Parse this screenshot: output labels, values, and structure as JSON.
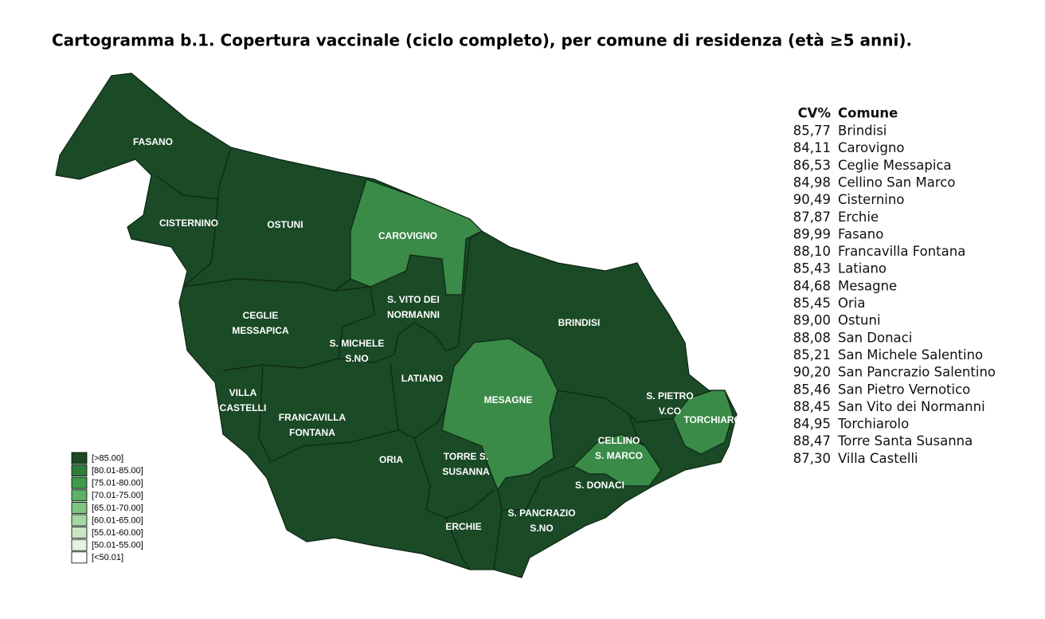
{
  "title": "Cartogramma b.1. Copertura vaccinale (ciclo completo), per comune di residenza (età ≥5 anni).",
  "map": {
    "labels": [
      [
        "FASANO"
      ],
      [
        "CISTERNINO"
      ],
      [
        "OSTUNI"
      ],
      [
        "CAROVIGNO"
      ],
      [
        "S. VITO DEI",
        "NORMANNI"
      ],
      [
        "CEGLIE",
        "MESSAPICA"
      ],
      [
        "S. MICHELE",
        "S.NO"
      ],
      [
        "BRINDISI"
      ],
      [
        "LATIANO"
      ],
      [
        "MESAGNE"
      ],
      [
        "VILLA",
        "CASTELLI"
      ],
      [
        "FRANCAVILLA",
        "FONTANA"
      ],
      [
        "S. PIETRO",
        "V.CO"
      ],
      [
        "TORCHIAROLO"
      ],
      [
        "CELLINO",
        "S. MARCO"
      ],
      [
        "ORIA"
      ],
      [
        "TORRE S.",
        "SUSANNA"
      ],
      [
        "S. DONACI"
      ],
      [
        "S. PANCRAZIO",
        "S.NO"
      ],
      [
        "ERCHIE"
      ]
    ]
  },
  "legend": {
    "items": [
      {
        "label": "[>85.00]",
        "color": "#1a4a26"
      },
      {
        "label": "[80.01-85.00]",
        "color": "#2f7d3e"
      },
      {
        "label": "[75.01-80.00]",
        "color": "#3f9a4c"
      },
      {
        "label": "[70.01-75.00]",
        "color": "#5cb165"
      },
      {
        "label": "[65.01-70.00]",
        "color": "#7fc582"
      },
      {
        "label": "[60.01-65.00]",
        "color": "#a5d7a2"
      },
      {
        "label": "[55.01-60.00]",
        "color": "#c7e7c2"
      },
      {
        "label": "[50.01-55.00]",
        "color": "#e4f4df"
      },
      {
        "label": "[<50.01]",
        "color": "#ffffff"
      }
    ]
  },
  "table": {
    "header": [
      "CV%",
      "Comune"
    ],
    "rows": [
      [
        "85,77",
        "Brindisi"
      ],
      [
        "84,11",
        "Carovigno"
      ],
      [
        "86,53",
        "Ceglie Messapica"
      ],
      [
        "84,98",
        "Cellino San Marco"
      ],
      [
        "90,49",
        "Cisternino"
      ],
      [
        "87,87",
        "Erchie"
      ],
      [
        "89,99",
        "Fasano"
      ],
      [
        "88,10",
        "Francavilla Fontana"
      ],
      [
        "85,43",
        "Latiano"
      ],
      [
        "84,68",
        "Mesagne"
      ],
      [
        "85,45",
        "Oria"
      ],
      [
        "89,00",
        "Ostuni"
      ],
      [
        "88,08",
        "San Donaci"
      ],
      [
        "85,21",
        "San Michele Salentino"
      ],
      [
        "90,20",
        "San Pancrazio Salentino"
      ],
      [
        "85,46",
        "San Pietro Vernotico"
      ],
      [
        "88,45",
        "San Vito dei Normanni"
      ],
      [
        "84,95",
        "Torchiarolo"
      ],
      [
        "88,47",
        "Torre Santa Susanna"
      ],
      [
        "87,30",
        "Villa Castelli"
      ]
    ]
  }
}
